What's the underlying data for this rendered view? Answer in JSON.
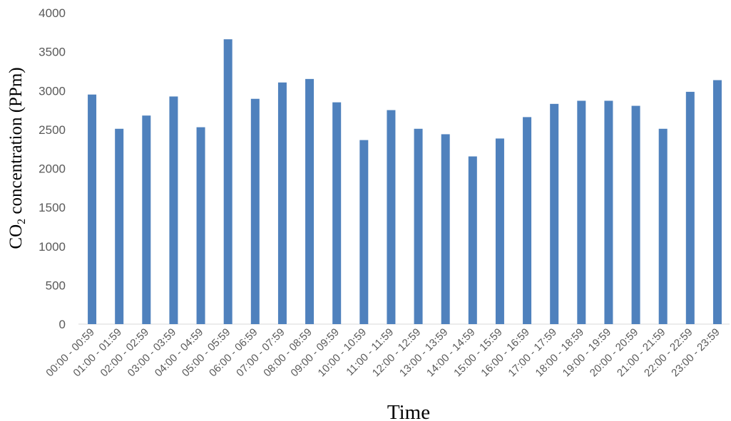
{
  "chart_data": {
    "type": "bar",
    "categories": [
      "00:00 - 00:59",
      "01:00 - 01:59",
      "02:00 - 02:59",
      "03:00 - 03:59",
      "04:00 - 04:59",
      "05:00 - 05:59",
      "06:00 - 06:59",
      "07:00 - 07:59",
      "08:00 - 08:59",
      "09:00 - 09:59",
      "10:00 - 10:59",
      "11:00 - 11:59",
      "12:00 - 12:59",
      "13:00 - 13:59",
      "14:00 - 14:59",
      "15:00 - 15:59",
      "16:00 - 16:59",
      "17:00 - 17:59",
      "18:00 - 18:59",
      "19:00 - 19:59",
      "20:00 - 20:59",
      "21:00 - 21:59",
      "22:00 - 22:59",
      "23:00 - 23:59"
    ],
    "values": [
      2950,
      2510,
      2680,
      2925,
      2530,
      3660,
      2895,
      3105,
      3150,
      2850,
      2365,
      2750,
      2510,
      2440,
      2155,
      2385,
      2660,
      2830,
      2870,
      2870,
      2805,
      2510,
      2985,
      3135
    ],
    "title": "",
    "xlabel": "Time",
    "ylabel_prefix": "CO",
    "ylabel_sub": "2",
    "ylabel_suffix": " concentration (PPm)",
    "ylim": [
      0,
      4000
    ],
    "yticks": [
      "0",
      "500",
      "1000",
      "1500",
      "2000",
      "2500",
      "3000",
      "3500",
      "4000"
    ],
    "grid": false,
    "legend": "none",
    "bar_color": "#4f81bd"
  }
}
